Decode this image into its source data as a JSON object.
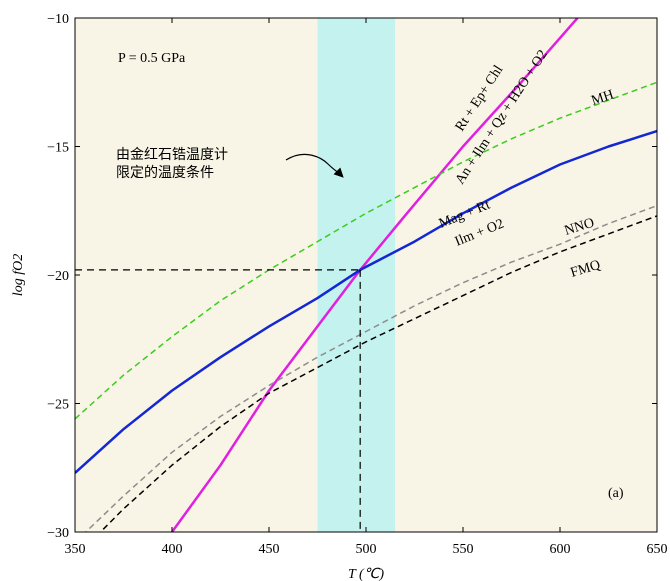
{
  "chart_data": {
    "type": "line",
    "title": "",
    "xlabel": "T (℃)",
    "ylabel": "log fO2",
    "xlim": [
      350,
      650
    ],
    "ylim": [
      -30,
      -10
    ],
    "xticks": [
      350,
      400,
      450,
      500,
      550,
      600,
      650
    ],
    "yticks": [
      -30,
      -25,
      -20,
      -15,
      -10
    ],
    "grid": false,
    "pressure_label": "P = 0.5 GPa",
    "panel_label": "(a)",
    "shaded_band": {
      "x_range": [
        475,
        515
      ],
      "color": "#c4f2ee"
    },
    "reference_point": {
      "x": 497,
      "y": -19.8
    },
    "background_color": "#f8f5e6",
    "annotation_line1": "由金红石锆温度计",
    "annotation_line2": "限定的温度条件",
    "series": [
      {
        "name": "Rt + Ep+ Chl / An + Ilm + Qz + H2O + O2",
        "label_line1": "Rt + Ep+ Chl",
        "label_line2": "An + Ilm + Qz + H2O + O2",
        "color": "#e020e0",
        "style": "solid",
        "width": 2.5,
        "x": [
          400,
          425,
          450,
          475,
          497,
          520,
          550,
          580,
          609
        ],
        "y": [
          -30,
          -27.4,
          -24.5,
          -22.0,
          -19.8,
          -17.7,
          -15.0,
          -12.5,
          -10.0
        ]
      },
      {
        "name": "Mag + Rt / Ilm + O2",
        "label_line1": "Mag + Rt",
        "label_line2": "Ilm + O2",
        "color": "#1428d2",
        "style": "solid",
        "width": 2.5,
        "x": [
          350,
          375,
          400,
          425,
          450,
          475,
          497,
          525,
          550,
          575,
          600,
          625,
          650
        ],
        "y": [
          -27.7,
          -26.0,
          -24.5,
          -23.2,
          -22.0,
          -20.9,
          -19.8,
          -18.7,
          -17.6,
          -16.6,
          -15.7,
          -15.0,
          -14.4
        ]
      },
      {
        "name": "MH",
        "color": "#3ccc1e",
        "style": "dashed",
        "width": 1.5,
        "x": [
          350,
          375,
          400,
          425,
          450,
          475,
          500,
          525,
          550,
          575,
          600,
          625,
          650
        ],
        "y": [
          -25.6,
          -23.9,
          -22.4,
          -21.0,
          -19.8,
          -18.7,
          -17.6,
          -16.6,
          -15.6,
          -14.7,
          -13.9,
          -13.2,
          -12.5
        ]
      },
      {
        "name": "NNO",
        "color": "#8c8c8c",
        "style": "dashed",
        "width": 1.5,
        "x": [
          350,
          375,
          400,
          425,
          450,
          475,
          500,
          525,
          550,
          575,
          600,
          625,
          650
        ],
        "y": [
          -30.4,
          -28.6,
          -26.9,
          -25.5,
          -24.3,
          -23.2,
          -22.2,
          -21.2,
          -20.3,
          -19.5,
          -18.8,
          -18.0,
          -17.3
        ]
      },
      {
        "name": "FMQ",
        "color": "#000000",
        "style": "dashed",
        "width": 1.5,
        "x": [
          350,
          375,
          400,
          425,
          450,
          475,
          500,
          525,
          550,
          575,
          600,
          625,
          650
        ],
        "y": [
          -31.0,
          -29.1,
          -27.4,
          -25.9,
          -24.6,
          -23.6,
          -22.6,
          -21.7,
          -20.8,
          -19.9,
          -19.1,
          -18.4,
          -17.7
        ]
      }
    ]
  }
}
